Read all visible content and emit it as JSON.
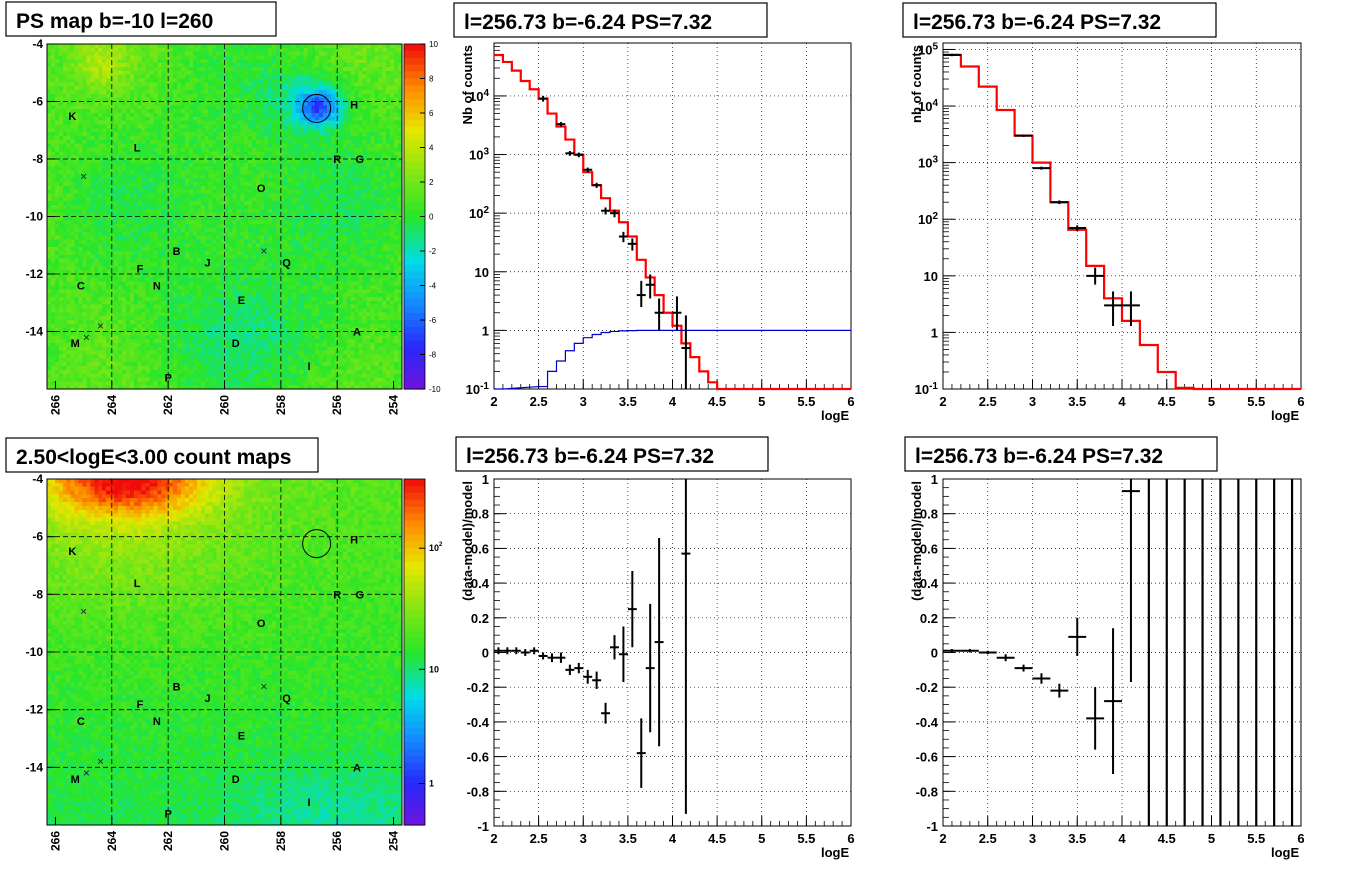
{
  "colors": {
    "frame": "#000000",
    "model_red": "#ff0000",
    "model_blue": "#0000cc",
    "data_black": "#000000",
    "grid": "#000000"
  },
  "chart_data": [
    {
      "id": "ps_map",
      "type": "heatmap",
      "title": "PS map b=-10 l=260",
      "xlim": [
        266.3,
        253.7
      ],
      "ylim": [
        -16,
        -4
      ],
      "xticks": [
        "266",
        "264",
        "262",
        "260",
        "258",
        "256",
        "254"
      ],
      "yticks": [
        "-4",
        "-6",
        "-8",
        "-10",
        "-12",
        "-14"
      ],
      "zlim": [
        -10,
        10
      ],
      "zticks": [
        "10",
        "8",
        "6",
        "4",
        "2",
        "0",
        "-2",
        "-4",
        "-6",
        "-8",
        "-10"
      ],
      "source_circle": {
        "l": 256.73,
        "b": -6.24
      },
      "labels": [
        {
          "t": "K",
          "l": 265.4,
          "b": -6.5
        },
        {
          "t": "H",
          "l": 255.4,
          "b": -6.1
        },
        {
          "t": "L",
          "l": 263.1,
          "b": -7.6
        },
        {
          "t": "R",
          "l": 256.0,
          "b": -8.0
        },
        {
          "t": "G",
          "l": 255.2,
          "b": -8.0
        },
        {
          "t": "O",
          "l": 258.7,
          "b": -9.0
        },
        {
          "t": "B",
          "l": 261.7,
          "b": -11.2
        },
        {
          "t": "J",
          "l": 260.6,
          "b": -11.6
        },
        {
          "t": "Q",
          "l": 257.8,
          "b": -11.6
        },
        {
          "t": "F",
          "l": 263.0,
          "b": -11.8
        },
        {
          "t": "C",
          "l": 265.1,
          "b": -12.4
        },
        {
          "t": "N",
          "l": 262.4,
          "b": -12.4
        },
        {
          "t": "E",
          "l": 259.4,
          "b": -12.9
        },
        {
          "t": "A",
          "l": 255.3,
          "b": -14.0
        },
        {
          "t": "M",
          "l": 265.3,
          "b": -14.4
        },
        {
          "t": "D",
          "l": 259.6,
          "b": -14.4
        },
        {
          "t": "I",
          "l": 257.0,
          "b": -15.2
        },
        {
          "t": "P",
          "l": 262.0,
          "b": -15.6
        }
      ],
      "crosses": [
        {
          "l": 265.0,
          "b": -8.6
        },
        {
          "l": 258.6,
          "b": -11.2
        },
        {
          "l": 264.4,
          "b": -13.8
        },
        {
          "l": 264.9,
          "b": -14.2
        }
      ]
    },
    {
      "id": "count_map",
      "type": "heatmap",
      "title": "2.50<logE<3.00 count maps",
      "xlim": [
        266.3,
        253.7
      ],
      "ylim": [
        -16,
        -4
      ],
      "xticks": [
        "266",
        "264",
        "262",
        "260",
        "258",
        "256",
        "254"
      ],
      "yticks": [
        "-4",
        "-6",
        "-8",
        "-10",
        "-12",
        "-14"
      ],
      "zscale": "log",
      "zticks": [
        "10^2",
        "10",
        "1"
      ],
      "source_circle": {
        "l": 256.73,
        "b": -6.24
      },
      "labels": "same as PS map",
      "crosses": "same as PS map"
    },
    {
      "id": "spectrum_left",
      "type": "line",
      "title": "l=256.73 b=-6.24 PS=7.32",
      "xlabel": "logE",
      "ylabel": "Nb of counts",
      "xlim": [
        2,
        6
      ],
      "ylim": [
        0.1,
        80000
      ],
      "yscale": "log",
      "xticks": [
        "2",
        "2.5",
        "3",
        "3.5",
        "4",
        "4.5",
        "5",
        "5.5",
        "6"
      ],
      "yticks": [
        "10^-1",
        "1",
        "10",
        "10^2",
        "10^3",
        "10^4"
      ],
      "grid": true,
      "series": [
        {
          "role": "model",
          "color": "#ff0000",
          "binwidth": 0.1,
          "x": [
            2.0,
            2.1,
            2.2,
            2.3,
            2.4,
            2.5,
            2.6,
            2.7,
            2.8,
            2.9,
            3.0,
            3.1,
            3.2,
            3.3,
            3.4,
            3.5,
            3.6,
            3.7,
            3.8,
            3.9,
            4.0,
            4.1,
            4.2,
            4.3,
            4.4,
            4.5,
            4.6
          ],
          "y": [
            50000,
            38000,
            27000,
            18000,
            13000,
            9000,
            5000,
            3000,
            1800,
            1000,
            500,
            300,
            180,
            110,
            70,
            40,
            16,
            8,
            4,
            2,
            1.2,
            0.6,
            0.35,
            0.2,
            0.13,
            0.1,
            0.1
          ]
        },
        {
          "role": "background",
          "color": "#0000cc",
          "binwidth": 0.1,
          "x": [
            2.0,
            2.5,
            2.6,
            2.7,
            2.8,
            2.9,
            3.0,
            3.1,
            3.2,
            3.3,
            3.4,
            3.5,
            3.6,
            3.7,
            3.8,
            3.9
          ],
          "y": [
            0.1,
            0.11,
            0.2,
            0.3,
            0.45,
            0.6,
            0.75,
            0.85,
            0.92,
            0.96,
            0.98,
            0.99,
            1.0,
            1.0,
            1.0,
            1.0
          ]
        },
        {
          "role": "data",
          "color": "#000000",
          "binwidth": 0.1,
          "points": [
            [
              2.55,
              9000,
              8000,
              10000
            ],
            [
              2.75,
              3300,
              3000,
              3600
            ],
            [
              2.85,
              1050,
              950,
              1150
            ],
            [
              2.95,
              990,
              900,
              1080
            ],
            [
              3.05,
              550,
              500,
              600
            ],
            [
              3.15,
              300,
              270,
              330
            ],
            [
              3.25,
              110,
              95,
              125
            ],
            [
              3.35,
              100,
              85,
              115
            ],
            [
              3.45,
              40,
              32,
              48
            ],
            [
              3.55,
              30,
              23,
              37
            ],
            [
              3.65,
              4,
              2.5,
              7
            ],
            [
              3.75,
              6,
              3.5,
              9
            ],
            [
              3.85,
              2,
              1.0,
              3.5
            ],
            [
              4.05,
              2,
              1,
              3.8
            ],
            [
              4.15,
              0.5,
              0.1,
              1.8
            ]
          ]
        }
      ]
    },
    {
      "id": "spectrum_right",
      "type": "line",
      "title": "l=256.73 b=-6.24 PS=7.32",
      "xlabel": "logE",
      "ylabel": "nb of counts",
      "xlim": [
        2,
        6
      ],
      "ylim": [
        0.1,
        130000
      ],
      "yscale": "log",
      "xticks": [
        "2",
        "2.5",
        "3",
        "3.5",
        "4",
        "4.5",
        "5",
        "5.5",
        "6"
      ],
      "yticks": [
        "10^-1",
        "1",
        "10",
        "10^2",
        "10^3",
        "10^4",
        "10^5"
      ],
      "grid": true,
      "series": [
        {
          "role": "model",
          "color": "#ff0000",
          "binwidth": 0.2,
          "x": [
            2.0,
            2.2,
            2.4,
            2.6,
            2.8,
            3.0,
            3.2,
            3.4,
            3.6,
            3.8,
            4.0,
            4.2,
            4.4,
            4.6,
            4.8,
            5.0,
            5.2,
            5.4,
            5.6,
            5.8
          ],
          "y": [
            80000,
            50000,
            22000,
            8500,
            3000,
            1000,
            200,
            65,
            15,
            4,
            1.6,
            0.6,
            0.2,
            0.105,
            0.1,
            0.1,
            0.1,
            0.1,
            0.1,
            0.1
          ]
        },
        {
          "role": "data",
          "color": "#000000",
          "binwidth": 0.2,
          "points": [
            [
              2.1,
              80000,
              76000,
              84000
            ],
            [
              2.9,
              3000,
              2850,
              3150
            ],
            [
              3.1,
              800,
              750,
              850
            ],
            [
              3.3,
              200,
              185,
              215
            ],
            [
              3.5,
              70,
              62,
              78
            ],
            [
              3.7,
              10,
              7,
              14
            ],
            [
              3.9,
              3,
              1.3,
              5.3
            ],
            [
              4.1,
              3,
              1.3,
              5.3
            ]
          ]
        }
      ]
    },
    {
      "id": "residual_left",
      "type": "scatter",
      "title": "l=256.73 b=-6.24 PS=7.32",
      "xlabel": "logE",
      "ylabel": "(data-model)/model",
      "xlim": [
        2,
        6
      ],
      "ylim": [
        -1,
        1
      ],
      "xticks": [
        "2",
        "2.5",
        "3",
        "3.5",
        "4",
        "4.5",
        "5",
        "5.5",
        "6"
      ],
      "yticks": [
        "-1",
        "-0.8",
        "-0.6",
        "-0.4",
        "-0.2",
        "0",
        "0.2",
        "0.4",
        "0.6",
        "0.8",
        "1"
      ],
      "grid": true,
      "binwidth": 0.1,
      "points": [
        [
          2.05,
          0.01,
          0.02
        ],
        [
          2.15,
          0.01,
          0.02
        ],
        [
          2.25,
          0.01,
          0.02
        ],
        [
          2.35,
          0.0,
          0.02
        ],
        [
          2.45,
          0.01,
          0.02
        ],
        [
          2.55,
          -0.02,
          0.02
        ],
        [
          2.65,
          -0.03,
          0.025
        ],
        [
          2.75,
          -0.03,
          0.03
        ],
        [
          2.85,
          -0.1,
          0.03
        ],
        [
          2.95,
          -0.09,
          0.03
        ],
        [
          3.05,
          -0.14,
          0.04
        ],
        [
          3.15,
          -0.16,
          0.05
        ],
        [
          3.25,
          -0.35,
          0.06
        ],
        [
          3.35,
          0.03,
          0.07
        ],
        [
          3.45,
          -0.01,
          0.16
        ],
        [
          3.55,
          0.25,
          0.22
        ],
        [
          3.65,
          -0.58,
          0.2
        ],
        [
          3.75,
          -0.09,
          0.37
        ],
        [
          3.85,
          0.06,
          0.6
        ],
        [
          4.15,
          0.57,
          1.5
        ]
      ]
    },
    {
      "id": "residual_right",
      "type": "scatter",
      "title": "l=256.73 b=-6.24 PS=7.32",
      "xlabel": "logE",
      "ylabel": "(data-model)/model",
      "xlim": [
        2,
        6
      ],
      "ylim": [
        -1,
        1
      ],
      "xticks": [
        "2",
        "2.5",
        "3",
        "3.5",
        "4",
        "4.5",
        "5",
        "5.5",
        "6"
      ],
      "yticks": [
        "-1",
        "-0.8",
        "-0.6",
        "-0.4",
        "-0.2",
        "0",
        "0.2",
        "0.4",
        "0.6",
        "0.8",
        "1"
      ],
      "grid": true,
      "binwidth": 0.2,
      "points": [
        [
          2.1,
          0.01,
          0.01
        ],
        [
          2.3,
          0.01,
          0.01
        ],
        [
          2.5,
          0.0,
          0.01
        ],
        [
          2.7,
          -0.03,
          0.02
        ],
        [
          2.9,
          -0.09,
          0.02
        ],
        [
          3.1,
          -0.15,
          0.03
        ],
        [
          3.3,
          -0.22,
          0.04
        ],
        [
          3.5,
          0.09,
          0.11
        ],
        [
          3.7,
          -0.38,
          0.18
        ],
        [
          3.9,
          -0.28,
          0.42
        ],
        [
          4.1,
          0.93,
          1.1
        ]
      ],
      "full_range_bars_x": [
        4.3,
        4.5,
        4.7,
        4.9,
        5.1,
        5.3,
        5.5,
        5.7,
        5.9
      ]
    }
  ]
}
